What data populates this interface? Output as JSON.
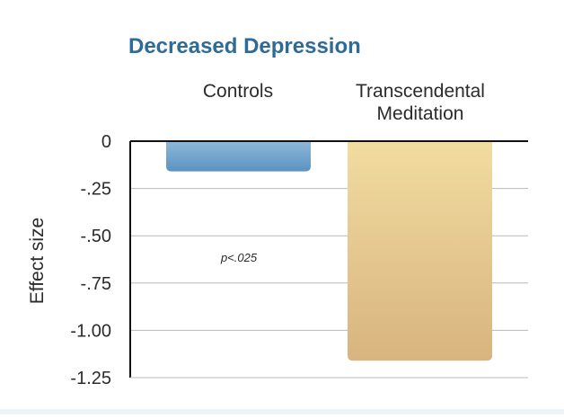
{
  "chart_data": {
    "type": "bar",
    "title": "Decreased Depression",
    "ylabel": "Effect size",
    "xlabel": "",
    "categories": [
      "Controls",
      "Transcendental Meditation"
    ],
    "category_label_lines": [
      [
        "Controls"
      ],
      [
        "Transcendental",
        "Meditation"
      ]
    ],
    "values": [
      -0.16,
      -1.16
    ],
    "ylim": [
      -1.25,
      0
    ],
    "yticks": [
      0,
      -0.25,
      -0.5,
      -0.75,
      -1.0,
      -1.25
    ],
    "ytick_labels": [
      "0",
      "-.25",
      "-.50",
      "-.75",
      "-1.00",
      "-1.25"
    ],
    "grid": true,
    "annotation": "p<.025",
    "colors": {
      "title": "#2e6b96",
      "controls_top": "#8fb8d8",
      "controls_bottom": "#5b93c1",
      "tm_top": "#f1dca0",
      "tm_bottom": "#d8b47e",
      "axis": "#111111",
      "grid": "#b8b8b8",
      "text": "#2b2b2b"
    }
  }
}
